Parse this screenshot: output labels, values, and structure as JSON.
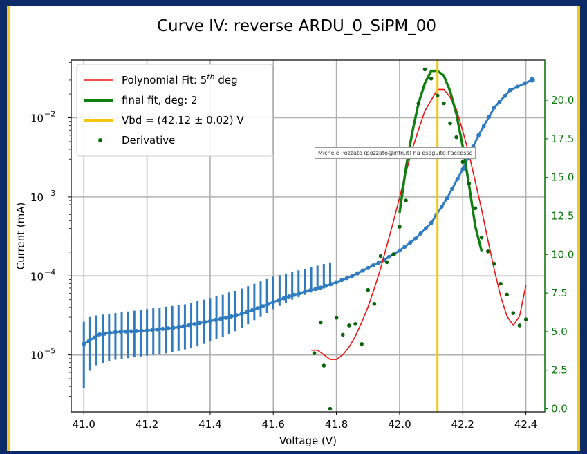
{
  "colors": {
    "current_series": "#2f7bbf",
    "poly_fit": "#ee1111",
    "final_fit": "#0f7f0f",
    "vbd_line": "#f4c50f",
    "derivative": "#0b640b",
    "grid": "#b0b0b0",
    "right_axis": "#0a7a0a"
  },
  "tooltip": "Michele Pozzato (pozzato@infn.it) ha eseguito l'accesso",
  "chart_data": {
    "type": "scatter",
    "title": "Curve IV: reverse ARDU_0_SiPM_00",
    "xlabel": "Voltage (V)",
    "ylabel": "Current (mA)",
    "xlim": [
      40.96,
      42.46
    ],
    "ylim_log": [
      -5.72,
      -1.27
    ],
    "y2lim": [
      -0.2,
      22.6
    ],
    "yscale": "log",
    "grid": true,
    "legend_location": "upper-left",
    "x_ticks": [
      41.0,
      41.2,
      41.4,
      41.6,
      41.8,
      42.0,
      42.2,
      42.4
    ],
    "x_tick_labels": [
      "41.0",
      "41.2",
      "41.4",
      "41.6",
      "41.8",
      "42.0",
      "42.2",
      "42.4"
    ],
    "y_ticks_exp": [
      -5,
      -4,
      -3,
      -2
    ],
    "y_tick_labels": [
      "10−5",
      "10−4",
      "10−3",
      "10−2"
    ],
    "y2_ticks": [
      0.0,
      2.5,
      5.0,
      7.5,
      10.0,
      12.5,
      15.0,
      17.5,
      20.0
    ],
    "y2_tick_labels": [
      "0.0",
      "2.5",
      "5.0",
      "7.5",
      "10.0",
      "12.5",
      "15.0",
      "17.5",
      "20.0"
    ],
    "legend": [
      {
        "label_main": "Polynomial Fit: 5",
        "label_sup": "th",
        "label_tail": " deg",
        "kind": "thin-line",
        "color": "#ee1111"
      },
      {
        "label_main": "final fit, deg: 2",
        "kind": "thick-line",
        "color": "#0f7f0f"
      },
      {
        "label_main": "Vbd = (42.12 ± 0.02) V",
        "kind": "thick-line",
        "color": "#f4c50f"
      },
      {
        "label_main": "Derivative",
        "kind": "dot",
        "color": "#0b640b"
      }
    ],
    "vbd": 42.12,
    "current_curve": {
      "name": "Current",
      "x": [
        41.0,
        41.05,
        41.1,
        41.15,
        41.2,
        41.25,
        41.3,
        41.35,
        41.4,
        41.45,
        41.5,
        41.55,
        41.6,
        41.65,
        41.7,
        41.75,
        41.8,
        41.85,
        41.9,
        41.95,
        42.0,
        42.05,
        42.1,
        42.15,
        42.2,
        42.25,
        42.3,
        42.35,
        42.42
      ],
      "y_log10": [
        -4.86,
        -4.74,
        -4.71,
        -4.7,
        -4.69,
        -4.67,
        -4.65,
        -4.61,
        -4.57,
        -4.53,
        -4.48,
        -4.41,
        -4.33,
        -4.26,
        -4.2,
        -4.15,
        -4.08,
        -4.0,
        -3.9,
        -3.8,
        -3.68,
        -3.53,
        -3.33,
        -3.02,
        -2.65,
        -2.22,
        -1.87,
        -1.65,
        -1.52
      ]
    },
    "error_bars": {
      "x": [
        41.0,
        41.02,
        41.04,
        41.06,
        41.08,
        41.1,
        41.12,
        41.14,
        41.16,
        41.18,
        41.2,
        41.22,
        41.24,
        41.26,
        41.28,
        41.3,
        41.32,
        41.34,
        41.36,
        41.38,
        41.4,
        41.42,
        41.44,
        41.46,
        41.48,
        41.5,
        41.52,
        41.54,
        41.56,
        41.58,
        41.6,
        41.62,
        41.64,
        41.66,
        41.68,
        41.7,
        41.72,
        41.74,
        41.76,
        41.78
      ],
      "low_log10": [
        -5.42,
        -5.2,
        -5.13,
        -5.1,
        -5.08,
        -5.06,
        -5.05,
        -5.04,
        -5.03,
        -5.02,
        -5.01,
        -5.0,
        -4.99,
        -4.98,
        -4.96,
        -4.95,
        -4.93,
        -4.91,
        -4.89,
        -4.86,
        -4.83,
        -4.8,
        -4.77,
        -4.74,
        -4.7,
        -4.66,
        -4.61,
        -4.56,
        -4.52,
        -4.47,
        -4.42,
        -4.38,
        -4.34,
        -4.3,
        -4.27,
        -4.24,
        -4.21,
        -4.18,
        -4.16,
        -4.13
      ],
      "high_log10": [
        -4.58,
        -4.52,
        -4.5,
        -4.49,
        -4.48,
        -4.47,
        -4.46,
        -4.45,
        -4.44,
        -4.43,
        -4.42,
        -4.41,
        -4.4,
        -4.39,
        -4.38,
        -4.37,
        -4.36,
        -4.34,
        -4.32,
        -4.3,
        -4.28,
        -4.26,
        -4.24,
        -4.21,
        -4.19,
        -4.16,
        -4.13,
        -4.1,
        -4.07,
        -4.04,
        -4.01,
        -3.99,
        -3.97,
        -3.95,
        -3.93,
        -3.91,
        -3.89,
        -3.87,
        -3.85,
        -3.83
      ]
    },
    "derivative": {
      "name": "Derivative",
      "x": [
        41.73,
        41.75,
        41.76,
        41.78,
        41.8,
        41.82,
        41.84,
        41.86,
        41.88,
        41.9,
        41.92,
        41.94,
        41.96,
        41.98,
        42.0,
        42.02,
        42.04,
        42.06,
        42.08,
        42.1,
        42.12,
        42.14,
        42.16,
        42.18,
        42.2,
        42.22,
        42.24,
        42.26,
        42.28,
        42.3,
        42.32,
        42.34,
        42.36,
        42.38,
        42.4
      ],
      "y": [
        3.6,
        5.6,
        2.8,
        0.0,
        5.9,
        4.8,
        5.4,
        5.5,
        4.2,
        7.7,
        6.8,
        9.9,
        9.5,
        10.0,
        11.8,
        13.5,
        16.4,
        19.8,
        22.0,
        21.4,
        20.3,
        19.8,
        18.5,
        17.6,
        16.0,
        14.6,
        13.0,
        11.1,
        10.2,
        9.4,
        8.1,
        7.4,
        6.2,
        5.4,
        5.8
      ]
    },
    "poly_fit": {
      "name": "Polynomial Fit",
      "x": [
        41.72,
        41.74,
        41.76,
        41.78,
        41.8,
        41.82,
        41.84,
        41.86,
        41.88,
        41.9,
        41.92,
        41.94,
        41.96,
        41.98,
        42.0,
        42.02,
        42.04,
        42.06,
        42.08,
        42.1,
        42.12,
        42.14,
        42.16,
        42.18,
        42.2,
        42.22,
        42.24,
        42.26,
        42.28,
        42.3,
        42.32,
        42.34,
        42.36,
        42.38,
        42.4
      ],
      "y": [
        3.8,
        3.8,
        3.5,
        3.2,
        3.2,
        3.5,
        4.0,
        4.7,
        5.6,
        6.6,
        7.8,
        9.1,
        10.6,
        12.1,
        13.7,
        15.3,
        16.8,
        18.1,
        19.3,
        20.0,
        20.7,
        20.7,
        20.2,
        19.4,
        18.0,
        16.5,
        14.7,
        12.9,
        10.9,
        9.0,
        7.3,
        6.0,
        5.4,
        6.0,
        8.0
      ]
    },
    "final_fit": {
      "name": "final fit",
      "x": [
        42.0,
        42.02,
        42.04,
        42.06,
        42.08,
        42.1,
        42.12,
        42.14,
        42.16,
        42.18,
        42.2,
        42.22,
        42.24,
        42.26
      ],
      "y": [
        12.7,
        15.6,
        17.9,
        19.8,
        21.1,
        21.9,
        21.9,
        21.6,
        20.6,
        19.1,
        17.0,
        14.5,
        11.8,
        10.2
      ]
    }
  }
}
